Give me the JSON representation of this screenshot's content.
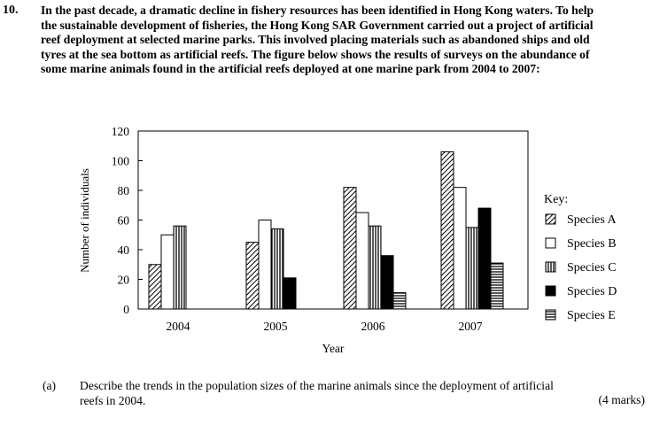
{
  "question": {
    "number": "10.",
    "intro_lines": [
      "In the past decade, a dramatic decline in fishery resources has been identified in Hong Kong waters.  To help",
      "the sustainable development of fisheries, the Hong Kong SAR Government carried out a project of artificial",
      "reef deployment at selected marine parks.  This involved placing materials such as abandoned ships and old",
      "tyres at the sea bottom as artificial reefs.  The figure below shows the results of surveys on the abundance of",
      "some marine animals found in the artificial reefs deployed at one marine park from 2004 to 2007:"
    ],
    "part_label": "(a)",
    "part_lines": [
      "Describe the trends in the population sizes of the marine animals since the deployment of artificial",
      "reefs in 2004."
    ],
    "marks": "(4 marks)"
  },
  "chart_data": {
    "type": "bar",
    "categories": [
      "2004",
      "2005",
      "2006",
      "2007"
    ],
    "series": [
      {
        "name": "Species A",
        "values": [
          30,
          45,
          82,
          106
        ]
      },
      {
        "name": "Species B",
        "values": [
          50,
          60,
          65,
          82
        ]
      },
      {
        "name": "Species C",
        "values": [
          56,
          54,
          56,
          55
        ]
      },
      {
        "name": "Species D",
        "values": [
          0,
          21,
          36,
          68
        ]
      },
      {
        "name": "Species E",
        "values": [
          0,
          0,
          11,
          31
        ]
      }
    ],
    "title": "",
    "xlabel": "Year",
    "ylabel": "Number of individuals",
    "ylim": [
      0,
      120
    ],
    "yticks": [
      0,
      20,
      40,
      60,
      80,
      100,
      120
    ],
    "grid": false,
    "legend_title": "Key:",
    "legend_position": "right",
    "patterns": [
      "diagonal-hatch",
      "white",
      "vertical-lines",
      "solid-black",
      "horizontal-lines"
    ]
  }
}
